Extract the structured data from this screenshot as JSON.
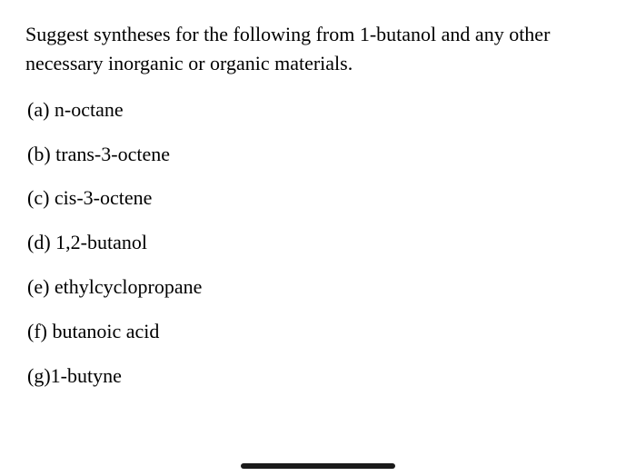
{
  "prompt": "Suggest syntheses for the following from 1-butanol and any other necessary inorganic or organic materials.",
  "items": {
    "a": "(a) n-octane",
    "b": "(b) trans-3-octene",
    "c": "(c) cis-3-octene",
    "d": "(d) 1,2-butanol",
    "e": "(e) ethylcyclopropane",
    "f": "(f) butanoic acid",
    "g": "(g)1-butyne"
  },
  "colors": {
    "background": "#ffffff",
    "text": "#000000",
    "scroll_indicator": "#1a1a1a"
  },
  "typography": {
    "font_family": "Georgia, Times New Roman, serif",
    "prompt_fontsize": 22,
    "item_fontsize": 22
  }
}
